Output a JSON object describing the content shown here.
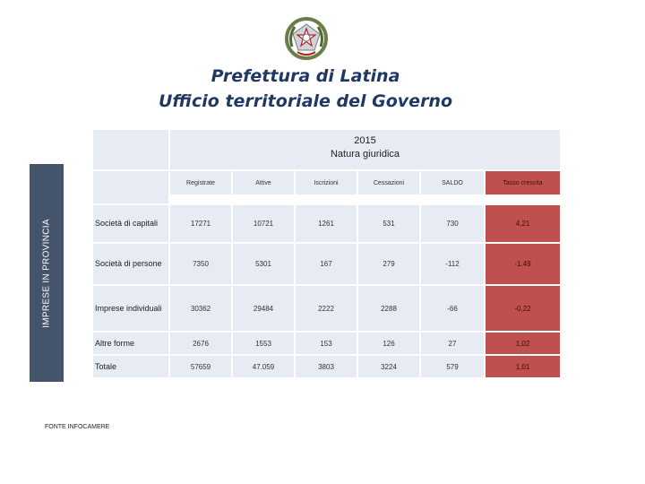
{
  "header": {
    "title_line1": "Prefettura di Latina",
    "title_line2": "Ufficio territoriale del Governo",
    "emblem_icon": "italian-republic-emblem-icon"
  },
  "side_label": "IMPRESE IN PROVINCIA",
  "table": {
    "title_year": "2015",
    "title_sub": "Natura giuridica",
    "columns": [
      "Registrate",
      "Attive",
      "Iscrizioni",
      "Cessazioni",
      "SALDO",
      "Tasso crescita"
    ],
    "rows": [
      {
        "label": "Società di capitali",
        "values": [
          "17271",
          "10721",
          "1261",
          "531",
          "730",
          "4,21"
        ]
      },
      {
        "label": "Società di persone",
        "values": [
          "7350",
          "5301",
          "167",
          "279",
          "-112",
          "-1,49"
        ]
      },
      {
        "label": "Imprese individuali",
        "values": [
          "30362",
          "29484",
          "2222",
          "2288",
          "-66",
          "-0,22"
        ]
      },
      {
        "label": "Altre forme",
        "values": [
          "2676",
          "1553",
          "153",
          "126",
          "27",
          "1,02"
        ]
      },
      {
        "label": "Totale",
        "values": [
          "57659",
          "47.059",
          "3803",
          "3224",
          "579",
          "1,01"
        ]
      }
    ]
  },
  "source": "FONTE INFOCAMERE",
  "colors": {
    "title": "#1f3864",
    "side_bar": "#44546a",
    "cell_bg": "#e7ebf3",
    "highlight": "#c0504d"
  }
}
